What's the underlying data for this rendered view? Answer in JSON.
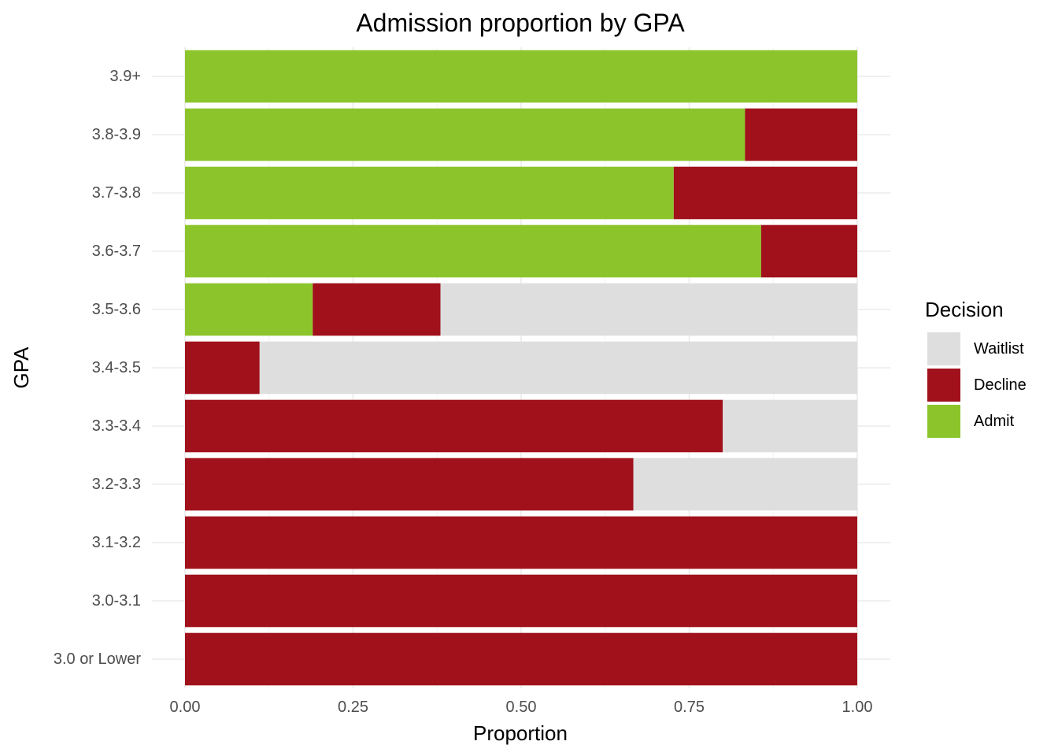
{
  "chart_data": {
    "type": "bar",
    "orientation": "horizontal",
    "stacked": true,
    "title": "Admission proportion by GPA",
    "xlabel": "Proportion",
    "ylabel": "GPA",
    "xlim": [
      0,
      1
    ],
    "x_ticks": [
      "0.00",
      "0.25",
      "0.50",
      "0.75",
      "1.00"
    ],
    "categories": [
      "3.9+",
      "3.8-3.9",
      "3.7-3.8",
      "3.6-3.7",
      "3.5-3.6",
      "3.4-3.5",
      "3.3-3.4",
      "3.2-3.3",
      "3.1-3.2",
      "3.0-3.1",
      "3.0 or Lower"
    ],
    "series": [
      {
        "name": "Admit",
        "color": "#8cc52b",
        "values": [
          1.0,
          0.833,
          0.727,
          0.857,
          0.19,
          0.0,
          0.0,
          0.0,
          0.0,
          0.0,
          0.0
        ]
      },
      {
        "name": "Decline",
        "color": "#a0111b",
        "values": [
          0.0,
          0.167,
          0.273,
          0.143,
          0.19,
          0.111,
          0.8,
          0.667,
          1.0,
          1.0,
          1.0
        ]
      },
      {
        "name": "Waitlist",
        "color": "#dedede",
        "values": [
          0.0,
          0.0,
          0.0,
          0.0,
          0.62,
          0.889,
          0.2,
          0.333,
          0.0,
          0.0,
          0.0
        ]
      }
    ],
    "legend": {
      "title": "Decision",
      "position": "right",
      "order": [
        "Waitlist",
        "Decline",
        "Admit"
      ]
    },
    "grid": true
  }
}
